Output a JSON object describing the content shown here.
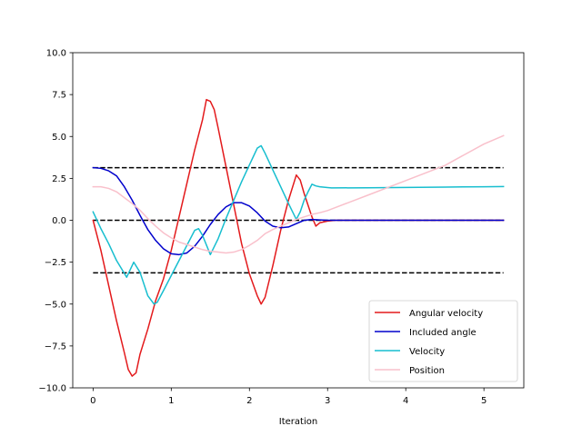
{
  "chart_data": {
    "type": "line",
    "title": "",
    "xlabel": "Iteration",
    "ylabel": "",
    "xlim": [
      -0.26,
      5.51
    ],
    "ylim": [
      -10.0,
      10.0
    ],
    "xticks": [
      0,
      1,
      2,
      3,
      4,
      5
    ],
    "yticks": [
      -10.0,
      -7.5,
      -5.0,
      -2.5,
      0.0,
      2.5,
      5.0,
      7.5,
      10.0
    ],
    "ytick_labels": [
      "−10.0",
      "−7.5",
      "−5.0",
      "−2.5",
      "0.0",
      "2.5",
      "5.0",
      "7.5",
      "10.0"
    ],
    "grid": false,
    "legend_position": "lower-right",
    "reference_lines": [
      {
        "y": 3.14,
        "x": [
          0,
          5.25
        ],
        "color": "#000000",
        "style": "dashed"
      },
      {
        "y": 0.0,
        "x": [
          0,
          5.25
        ],
        "color": "#000000",
        "style": "dashed"
      },
      {
        "y": -3.14,
        "x": [
          0,
          5.25
        ],
        "color": "#000000",
        "style": "dashed"
      }
    ],
    "series": [
      {
        "name": "Angular velocity",
        "color": "#e31a1c",
        "x": [
          0,
          0.1,
          0.2,
          0.3,
          0.4,
          0.45,
          0.5,
          0.55,
          0.6,
          0.7,
          0.8,
          0.9,
          1.0,
          1.1,
          1.2,
          1.3,
          1.4,
          1.45,
          1.5,
          1.55,
          1.6,
          1.7,
          1.8,
          1.9,
          2.0,
          2.1,
          2.15,
          2.2,
          2.3,
          2.4,
          2.5,
          2.6,
          2.65,
          2.7,
          2.8,
          2.85,
          2.9,
          3.0,
          3.1,
          3.5,
          4.0,
          4.5,
          5.0,
          5.25
        ],
        "y": [
          0,
          -1.8,
          -3.9,
          -6.0,
          -7.9,
          -8.9,
          -9.3,
          -9.1,
          -8.0,
          -6.5,
          -4.8,
          -3.5,
          -1.8,
          0.2,
          2.2,
          4.2,
          6.0,
          7.2,
          7.1,
          6.6,
          5.5,
          3.2,
          0.9,
          -1.4,
          -3.2,
          -4.5,
          -5.0,
          -4.6,
          -2.7,
          -0.6,
          1.2,
          2.7,
          2.4,
          1.6,
          0.2,
          -0.35,
          -0.15,
          -0.05,
          0.0,
          0.0,
          0.0,
          0.0,
          0.0,
          0.0
        ]
      },
      {
        "name": "Included angle",
        "color": "#0000cc",
        "x": [
          0,
          0.1,
          0.2,
          0.3,
          0.4,
          0.5,
          0.6,
          0.7,
          0.8,
          0.9,
          1.0,
          1.1,
          1.2,
          1.3,
          1.4,
          1.5,
          1.6,
          1.7,
          1.8,
          1.9,
          2.0,
          2.1,
          2.2,
          2.3,
          2.4,
          2.5,
          2.6,
          2.7,
          2.8,
          2.9,
          3.0,
          3.5,
          4.0,
          4.5,
          5.0,
          5.25
        ],
        "y": [
          3.14,
          3.1,
          2.95,
          2.65,
          2.0,
          1.2,
          0.3,
          -0.55,
          -1.2,
          -1.7,
          -2.0,
          -2.05,
          -1.95,
          -1.55,
          -0.95,
          -0.25,
          0.35,
          0.8,
          1.05,
          1.05,
          0.85,
          0.45,
          -0.05,
          -0.35,
          -0.45,
          -0.4,
          -0.2,
          0.0,
          0.05,
          0.02,
          0.0,
          0.0,
          0.0,
          0.0,
          0.0,
          0.0
        ]
      },
      {
        "name": "Velocity",
        "color": "#17becf",
        "x": [
          0,
          0.1,
          0.2,
          0.3,
          0.43,
          0.52,
          0.6,
          0.7,
          0.78,
          0.82,
          0.9,
          1.0,
          1.1,
          1.2,
          1.3,
          1.35,
          1.4,
          1.5,
          1.6,
          1.7,
          1.8,
          1.9,
          2.0,
          2.1,
          2.15,
          2.2,
          2.3,
          2.4,
          2.5,
          2.6,
          2.65,
          2.7,
          2.75,
          2.8,
          2.85,
          2.9,
          3.0,
          3.05,
          3.5,
          4.0,
          4.5,
          5.0,
          5.25
        ],
        "y": [
          0.5,
          -0.5,
          -1.4,
          -2.4,
          -3.4,
          -2.5,
          -3.1,
          -4.5,
          -5.0,
          -4.9,
          -4.2,
          -3.3,
          -2.4,
          -1.5,
          -0.6,
          -0.5,
          -0.9,
          -2.05,
          -1.1,
          0.1,
          1.2,
          2.3,
          3.3,
          4.3,
          4.45,
          4.0,
          3.0,
          2.0,
          1.0,
          0.05,
          0.5,
          1.2,
          1.7,
          2.15,
          2.05,
          2.0,
          1.95,
          1.93,
          1.94,
          1.96,
          1.98,
          2.0,
          2.01
        ]
      },
      {
        "name": "Position",
        "color": "#f9c0cb",
        "x": [
          0,
          0.1,
          0.2,
          0.3,
          0.4,
          0.5,
          0.6,
          0.7,
          0.8,
          0.9,
          1.0,
          1.1,
          1.2,
          1.3,
          1.4,
          1.5,
          1.6,
          1.7,
          1.8,
          1.9,
          2.0,
          2.1,
          2.2,
          2.3,
          2.4,
          2.5,
          2.6,
          2.7,
          2.8,
          2.9,
          3.0,
          3.5,
          4.0,
          4.5,
          5.0,
          5.25
        ],
        "y": [
          2.0,
          2.0,
          1.9,
          1.7,
          1.35,
          1.0,
          0.6,
          0.1,
          -0.35,
          -0.75,
          -1.05,
          -1.3,
          -1.45,
          -1.6,
          -1.75,
          -1.85,
          -1.9,
          -1.95,
          -1.9,
          -1.75,
          -1.5,
          -1.2,
          -0.8,
          -0.55,
          -0.35,
          -0.15,
          0.05,
          0.2,
          0.35,
          0.45,
          0.58,
          1.47,
          2.37,
          3.27,
          4.55,
          5.05
        ]
      }
    ]
  }
}
